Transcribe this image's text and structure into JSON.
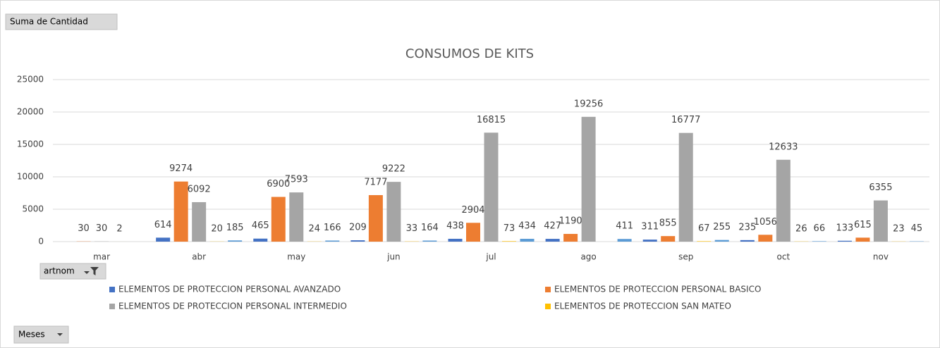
{
  "field_buttons": {
    "values": "Suma de Cantidad",
    "legend": "artnom",
    "axis": "Meses"
  },
  "chart_data": {
    "type": "bar",
    "title": "CONSUMOS DE KITS",
    "categories": [
      "mar",
      "abr",
      "may",
      "jun",
      "jul",
      "ago",
      "sep",
      "oct",
      "nov"
    ],
    "series": [
      {
        "name": "ELEMENTOS DE PROTECCION PERSONAL AVANZADO",
        "color": "#4472c4",
        "values": [
          null,
          614,
          465,
          209,
          438,
          427,
          311,
          235,
          133
        ]
      },
      {
        "name": "ELEMENTOS DE PROTECCION PERSONAL BASICO",
        "color": "#ed7d31",
        "values": [
          30,
          9274,
          6900,
          7177,
          2904,
          1190,
          855,
          1056,
          615
        ]
      },
      {
        "name": "ELEMENTOS DE PROTECCION PERSONAL INTERMEDIO",
        "color": "#a5a5a5",
        "values": [
          30,
          6092,
          7593,
          9222,
          16815,
          19256,
          16777,
          12633,
          6355
        ]
      },
      {
        "name": "ELEMENTOS DE PROTECCION SAN MATEO",
        "color": "#ffc000",
        "values": [
          2,
          20,
          24,
          33,
          73,
          null,
          67,
          26,
          23
        ]
      },
      {
        "color": "#5b9bd5",
        "values": [
          null,
          185,
          166,
          164,
          434,
          411,
          255,
          66,
          45
        ]
      }
    ],
    "ylim": [
      0,
      25000
    ],
    "yticks": [
      0,
      5000,
      10000,
      15000,
      20000,
      25000
    ],
    "grid": true
  }
}
